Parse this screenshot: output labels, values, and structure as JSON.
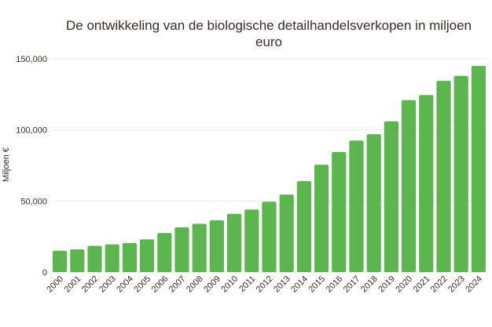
{
  "chart_data": {
    "type": "bar",
    "title_line1": "De ontwikkeling van de biologische detailhandelsverkopen in miljoen",
    "title_line2": "euro",
    "ylabel": "Miljoen €",
    "xlabel": "",
    "ylim": [
      0,
      150000
    ],
    "yticks": [
      0,
      50000,
      100000,
      150000
    ],
    "ytick_labels": [
      "0",
      "50,000",
      "100,000",
      "150,000"
    ],
    "grid": true,
    "bar_color": "#5cb54f",
    "categories": [
      "2000",
      "2001",
      "2002",
      "2003",
      "2004",
      "2005",
      "2006",
      "2007",
      "2008",
      "2009",
      "2010",
      "2011",
      "2012",
      "2013",
      "2014",
      "2015",
      "2016",
      "2017",
      "2018",
      "2019",
      "2020",
      "2021",
      "2022",
      "2023",
      "2024"
    ],
    "values": [
      15000,
      16000,
      18500,
      19500,
      20500,
      23000,
      27500,
      31500,
      34000,
      36500,
      41000,
      44000,
      49500,
      54500,
      64000,
      75500,
      84500,
      92500,
      97000,
      106000,
      121000,
      124500,
      134500,
      138000,
      145000
    ]
  }
}
